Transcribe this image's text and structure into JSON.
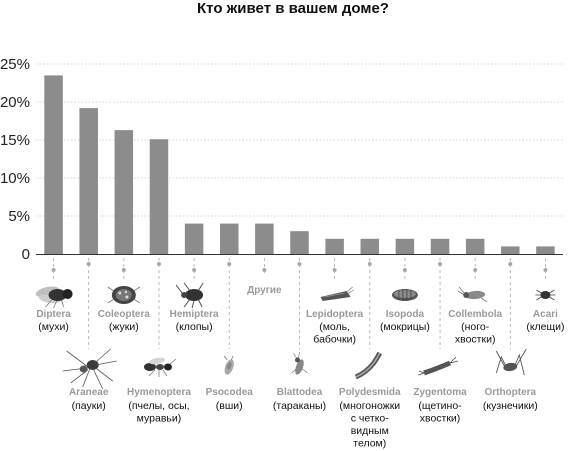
{
  "chart_data": {
    "type": "bar",
    "title": "Кто живет в вашем доме?",
    "xlabel": "",
    "ylabel": "",
    "ylim": [
      0,
      25
    ],
    "y_ticks": [
      "0",
      "5%",
      "10%",
      "15%",
      "20%",
      "25%"
    ],
    "grid": true,
    "bar_color": "#8c8c8c",
    "categories": [
      {
        "order": "Diptera",
        "common": [
          "(мухи)"
        ],
        "value": 23.5,
        "icon": "fly-icon",
        "row": "top"
      },
      {
        "order": "Araneae",
        "common": [
          "(пауки)"
        ],
        "value": 19.2,
        "icon": "spider-icon",
        "row": "bottom"
      },
      {
        "order": "Coleoptera",
        "common": [
          "(жуки)"
        ],
        "value": 16.3,
        "icon": "beetle-icon",
        "row": "top"
      },
      {
        "order": "Hymenoptera",
        "common": [
          "(пчелы, осы,",
          "муравьи)"
        ],
        "value": 15.1,
        "icon": "ant-icon",
        "row": "bottom"
      },
      {
        "order": "Hemiptera",
        "common": [
          "(клопы)"
        ],
        "value": 4.0,
        "icon": "bug-icon",
        "row": "top"
      },
      {
        "order": "Psocodea",
        "common": [
          "(вши)"
        ],
        "value": 4.0,
        "icon": "louse-icon",
        "row": "bottom"
      },
      {
        "order": "",
        "common": [
          "Другие"
        ],
        "value": 4.0,
        "icon": "",
        "row": "top"
      },
      {
        "order": "Blattodea",
        "common": [
          "(тараканы)"
        ],
        "value": 3.0,
        "icon": "cockroach-icon",
        "row": "bottom"
      },
      {
        "order": "Lepidoptera",
        "common": [
          "(моль,",
          "бабочки)"
        ],
        "value": 2.0,
        "icon": "moth-icon",
        "row": "top"
      },
      {
        "order": "Polydesmida",
        "common": [
          "(многоножки",
          "с четко-",
          "видным",
          "телом)"
        ],
        "value": 2.0,
        "icon": "millipede-icon",
        "row": "bottom"
      },
      {
        "order": "Isopoda",
        "common": [
          "(мокрицы)"
        ],
        "value": 2.0,
        "icon": "woodlouse-icon",
        "row": "top"
      },
      {
        "order": "Zygentoma",
        "common": [
          "(щетино-",
          "хвостки)"
        ],
        "value": 2.0,
        "icon": "silverfish-icon",
        "row": "bottom"
      },
      {
        "order": "Collembola",
        "common": [
          "(ного-",
          "хвостки)"
        ],
        "value": 2.0,
        "icon": "springtail-icon",
        "row": "top"
      },
      {
        "order": "Orthoptera",
        "common": [
          "(кузнечики)"
        ],
        "value": 1.0,
        "icon": "cricket-icon",
        "row": "bottom"
      },
      {
        "order": "Acari",
        "common": [
          "(клещи)"
        ],
        "value": 1.0,
        "icon": "mite-icon",
        "row": "top"
      }
    ]
  }
}
